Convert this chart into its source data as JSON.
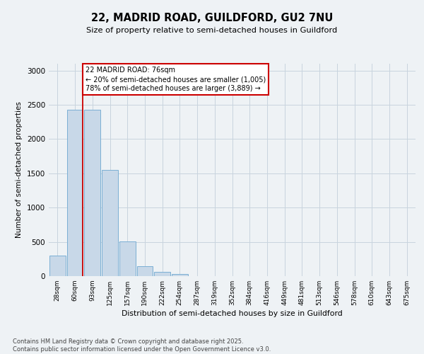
{
  "title_line1": "22, MADRID ROAD, GUILDFORD, GU2 7NU",
  "title_line2": "Size of property relative to semi-detached houses in Guildford",
  "xlabel": "Distribution of semi-detached houses by size in Guildford",
  "ylabel": "Number of semi-detached properties",
  "categories": [
    "28sqm",
    "60sqm",
    "93sqm",
    "125sqm",
    "157sqm",
    "190sqm",
    "222sqm",
    "254sqm",
    "287sqm",
    "319sqm",
    "352sqm",
    "384sqm",
    "416sqm",
    "449sqm",
    "481sqm",
    "513sqm",
    "546sqm",
    "578sqm",
    "610sqm",
    "643sqm",
    "675sqm"
  ],
  "values": [
    300,
    2430,
    2430,
    1550,
    510,
    145,
    65,
    30,
    5,
    0,
    0,
    0,
    0,
    0,
    0,
    0,
    0,
    0,
    0,
    0,
    0
  ],
  "bar_color": "#c8d8e8",
  "bar_edge_color": "#7bafd4",
  "grid_color": "#c8d4de",
  "vline_x": 1.45,
  "vline_color": "#cc0000",
  "annotation_text": "22 MADRID ROAD: 76sqm\n← 20% of semi-detached houses are smaller (1,005)\n78% of semi-detached houses are larger (3,889) →",
  "annotation_box_facecolor": "#ffffff",
  "annotation_box_edgecolor": "#cc0000",
  "ylim": [
    0,
    3100
  ],
  "yticks": [
    0,
    500,
    1000,
    1500,
    2000,
    2500,
    3000
  ],
  "footnote": "Contains HM Land Registry data © Crown copyright and database right 2025.\nContains public sector information licensed under the Open Government Licence v3.0.",
  "background_color": "#eef2f5"
}
